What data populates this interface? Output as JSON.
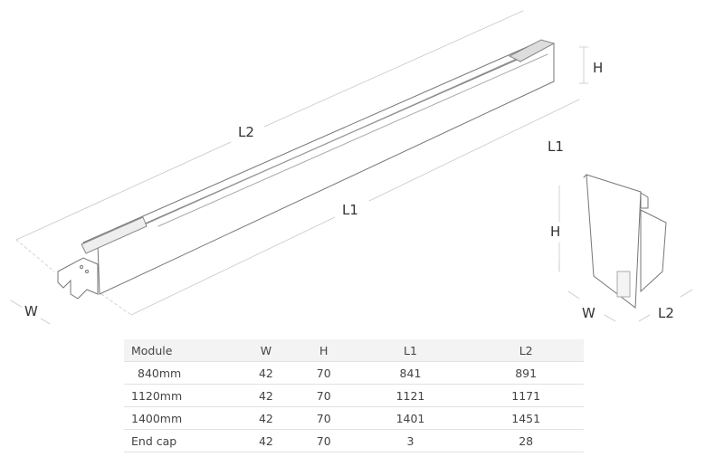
{
  "drawing": {
    "bar_labels": {
      "L2": "L2",
      "L1": "L1",
      "H": "H",
      "W": "W"
    },
    "endcap_labels": {
      "L1": "L1",
      "H": "H",
      "W": "W",
      "L2": "L2"
    }
  },
  "table": {
    "headers": [
      "Module",
      "W",
      "H",
      "L1",
      "L2"
    ],
    "rows": [
      [
        "840mm",
        "42",
        "70",
        "841",
        "891"
      ],
      [
        "1120mm",
        "42",
        "70",
        "1121",
        "1171"
      ],
      [
        "1400mm",
        "42",
        "70",
        "1401",
        "1451"
      ],
      [
        "End cap",
        "42",
        "70",
        "3",
        "28"
      ]
    ]
  }
}
